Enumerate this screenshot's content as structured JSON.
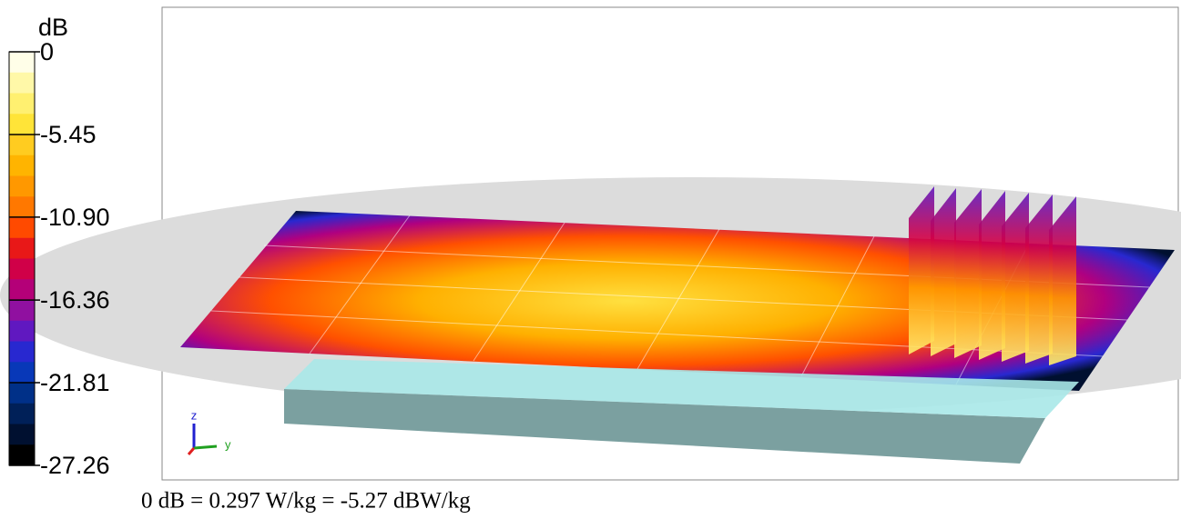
{
  "colorbar": {
    "unit": "dB",
    "ticks": [
      0,
      -5.45,
      {
        "value": -10.9,
        "label": "-10.90"
      },
      -16.36,
      -21.81,
      -27.26
    ],
    "colors": [
      "#fffee8",
      "#fff8a8",
      "#fff070",
      "#ffe438",
      "#ffcc20",
      "#ffb400",
      "#ff9800",
      "#ff7800",
      "#ff4a00",
      "#e81818",
      "#d00048",
      "#b40078",
      "#9010a0",
      "#6018c0",
      "#2828d0",
      "#0838b8",
      "#003088",
      "#002058",
      "#001030",
      "#000000"
    ]
  },
  "axes": {
    "z": "z",
    "y": "y"
  },
  "caption": "0 dB = 0.297 W/kg = -5.27 dBW/kg"
}
